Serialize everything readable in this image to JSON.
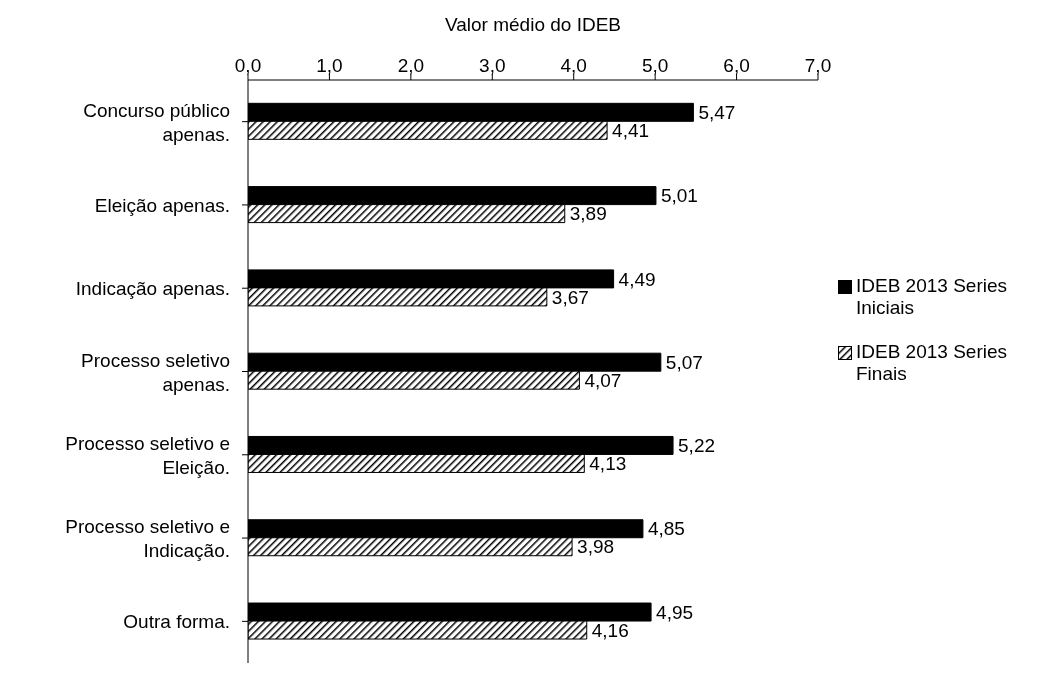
{
  "chart_data": {
    "type": "bar",
    "orientation": "horizontal",
    "xlabel": "Valor médio do IDEB",
    "categories": [
      "Concurso público apenas.",
      "Eleição apenas.",
      "Indicação apenas.",
      "Processo seletivo apenas.",
      "Processo seletivo e Eleição.",
      "Processo seletivo e Indicação.",
      "Outra forma."
    ],
    "series": [
      {
        "name": "IDEB 2013 Series Iniciais",
        "color": "#000000",
        "values": [
          5.47,
          5.01,
          4.49,
          5.07,
          5.22,
          4.85,
          4.95
        ],
        "value_labels": [
          "5,47",
          "5,01",
          "4,49",
          "5,07",
          "5,22",
          "4,85",
          "4,95"
        ]
      },
      {
        "name": "IDEB 2013 Series Finais",
        "color": "#000000",
        "values": [
          4.41,
          3.89,
          3.67,
          4.07,
          4.13,
          3.98,
          4.16
        ],
        "value_labels": [
          "4,41",
          "3,89",
          "3,67",
          "4,07",
          "4,13",
          "3,98",
          "4,16"
        ]
      }
    ],
    "xlim": [
      0,
      7
    ],
    "xticks": [
      {
        "value": 0,
        "label": "0,0"
      },
      {
        "value": 1,
        "label": "1,0"
      },
      {
        "value": 2,
        "label": "2,0"
      },
      {
        "value": 3,
        "label": "3,0"
      },
      {
        "value": 4,
        "label": "4,0"
      },
      {
        "value": 5,
        "label": "5,0"
      },
      {
        "value": 6,
        "label": "6,0"
      },
      {
        "value": 7,
        "label": "7,0"
      }
    ],
    "legend": "right",
    "grid": false
  }
}
